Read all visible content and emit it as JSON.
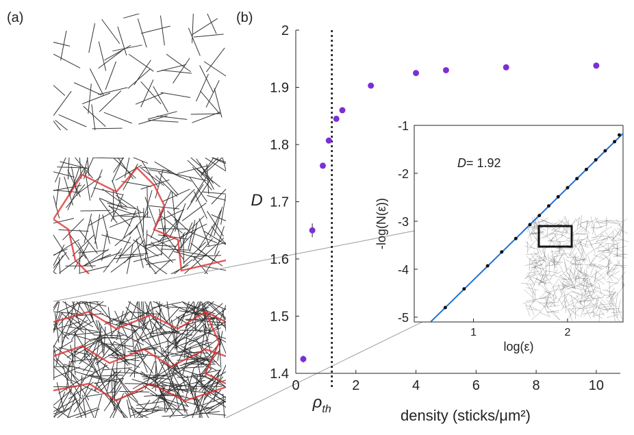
{
  "panel_labels": [
    "(a)",
    "(b)"
  ],
  "chart_data": [
    {
      "type": "scatter",
      "ylabel": "D",
      "xlabel": "density (sticks/μm²)",
      "x": [
        0.25,
        0.55,
        0.9,
        1.1,
        1.35,
        1.55,
        2.5,
        4.0,
        5.0,
        7.0,
        10.0
      ],
      "series": [
        {
          "color": "#7b2fd6",
          "values": [
            1.425,
            1.65,
            1.763,
            1.807,
            1.845,
            1.86,
            1.903,
            1.925,
            1.93,
            1.935,
            1.938
          ],
          "errors": [
            0.006,
            0.012,
            0.004,
            0.004,
            0.004,
            0.004,
            0.003,
            0.003,
            0.003,
            0.003,
            0.003
          ]
        }
      ],
      "threshold": {
        "value": 1.2,
        "label": "ρ",
        "subscript": "th"
      },
      "xlim": [
        0,
        10.8
      ],
      "xticks": [
        0,
        2,
        4,
        6,
        8,
        10
      ],
      "ylim": [
        1.4,
        2.0
      ],
      "yticks": [
        1.4,
        1.5,
        1.6,
        1.7,
        1.8,
        1.9,
        2
      ]
    },
    {
      "type": "line",
      "xlabel": "log(ε)",
      "ylabel": "-log(N(ε))",
      "annotation": {
        "symbol": "D",
        "text": "= 1.92"
      },
      "x": [
        0.7,
        0.9,
        1.15,
        1.3,
        1.45,
        1.6,
        1.7,
        1.8,
        1.9,
        2.0,
        2.1,
        2.2,
        2.3,
        2.4,
        2.5,
        2.55
      ],
      "series": [
        {
          "color": "#111111",
          "values": [
            -4.8,
            -4.41,
            -3.93,
            -3.64,
            -3.36,
            -3.07,
            -2.88,
            -2.68,
            -2.49,
            -2.3,
            -2.11,
            -1.92,
            -1.72,
            -1.53,
            -1.34,
            -1.2
          ]
        }
      ],
      "fit": {
        "color": "#1f6fd6",
        "x": [
          0.45,
          2.6
        ],
        "values": [
          -5.28,
          -1.15
        ]
      },
      "xlim": [
        0.37,
        2.59
      ],
      "xticks": [
        1,
        2
      ],
      "ylim": [
        -5.1,
        -1
      ],
      "yticks": [
        -5,
        -4,
        -3,
        -2,
        -1
      ]
    }
  ]
}
